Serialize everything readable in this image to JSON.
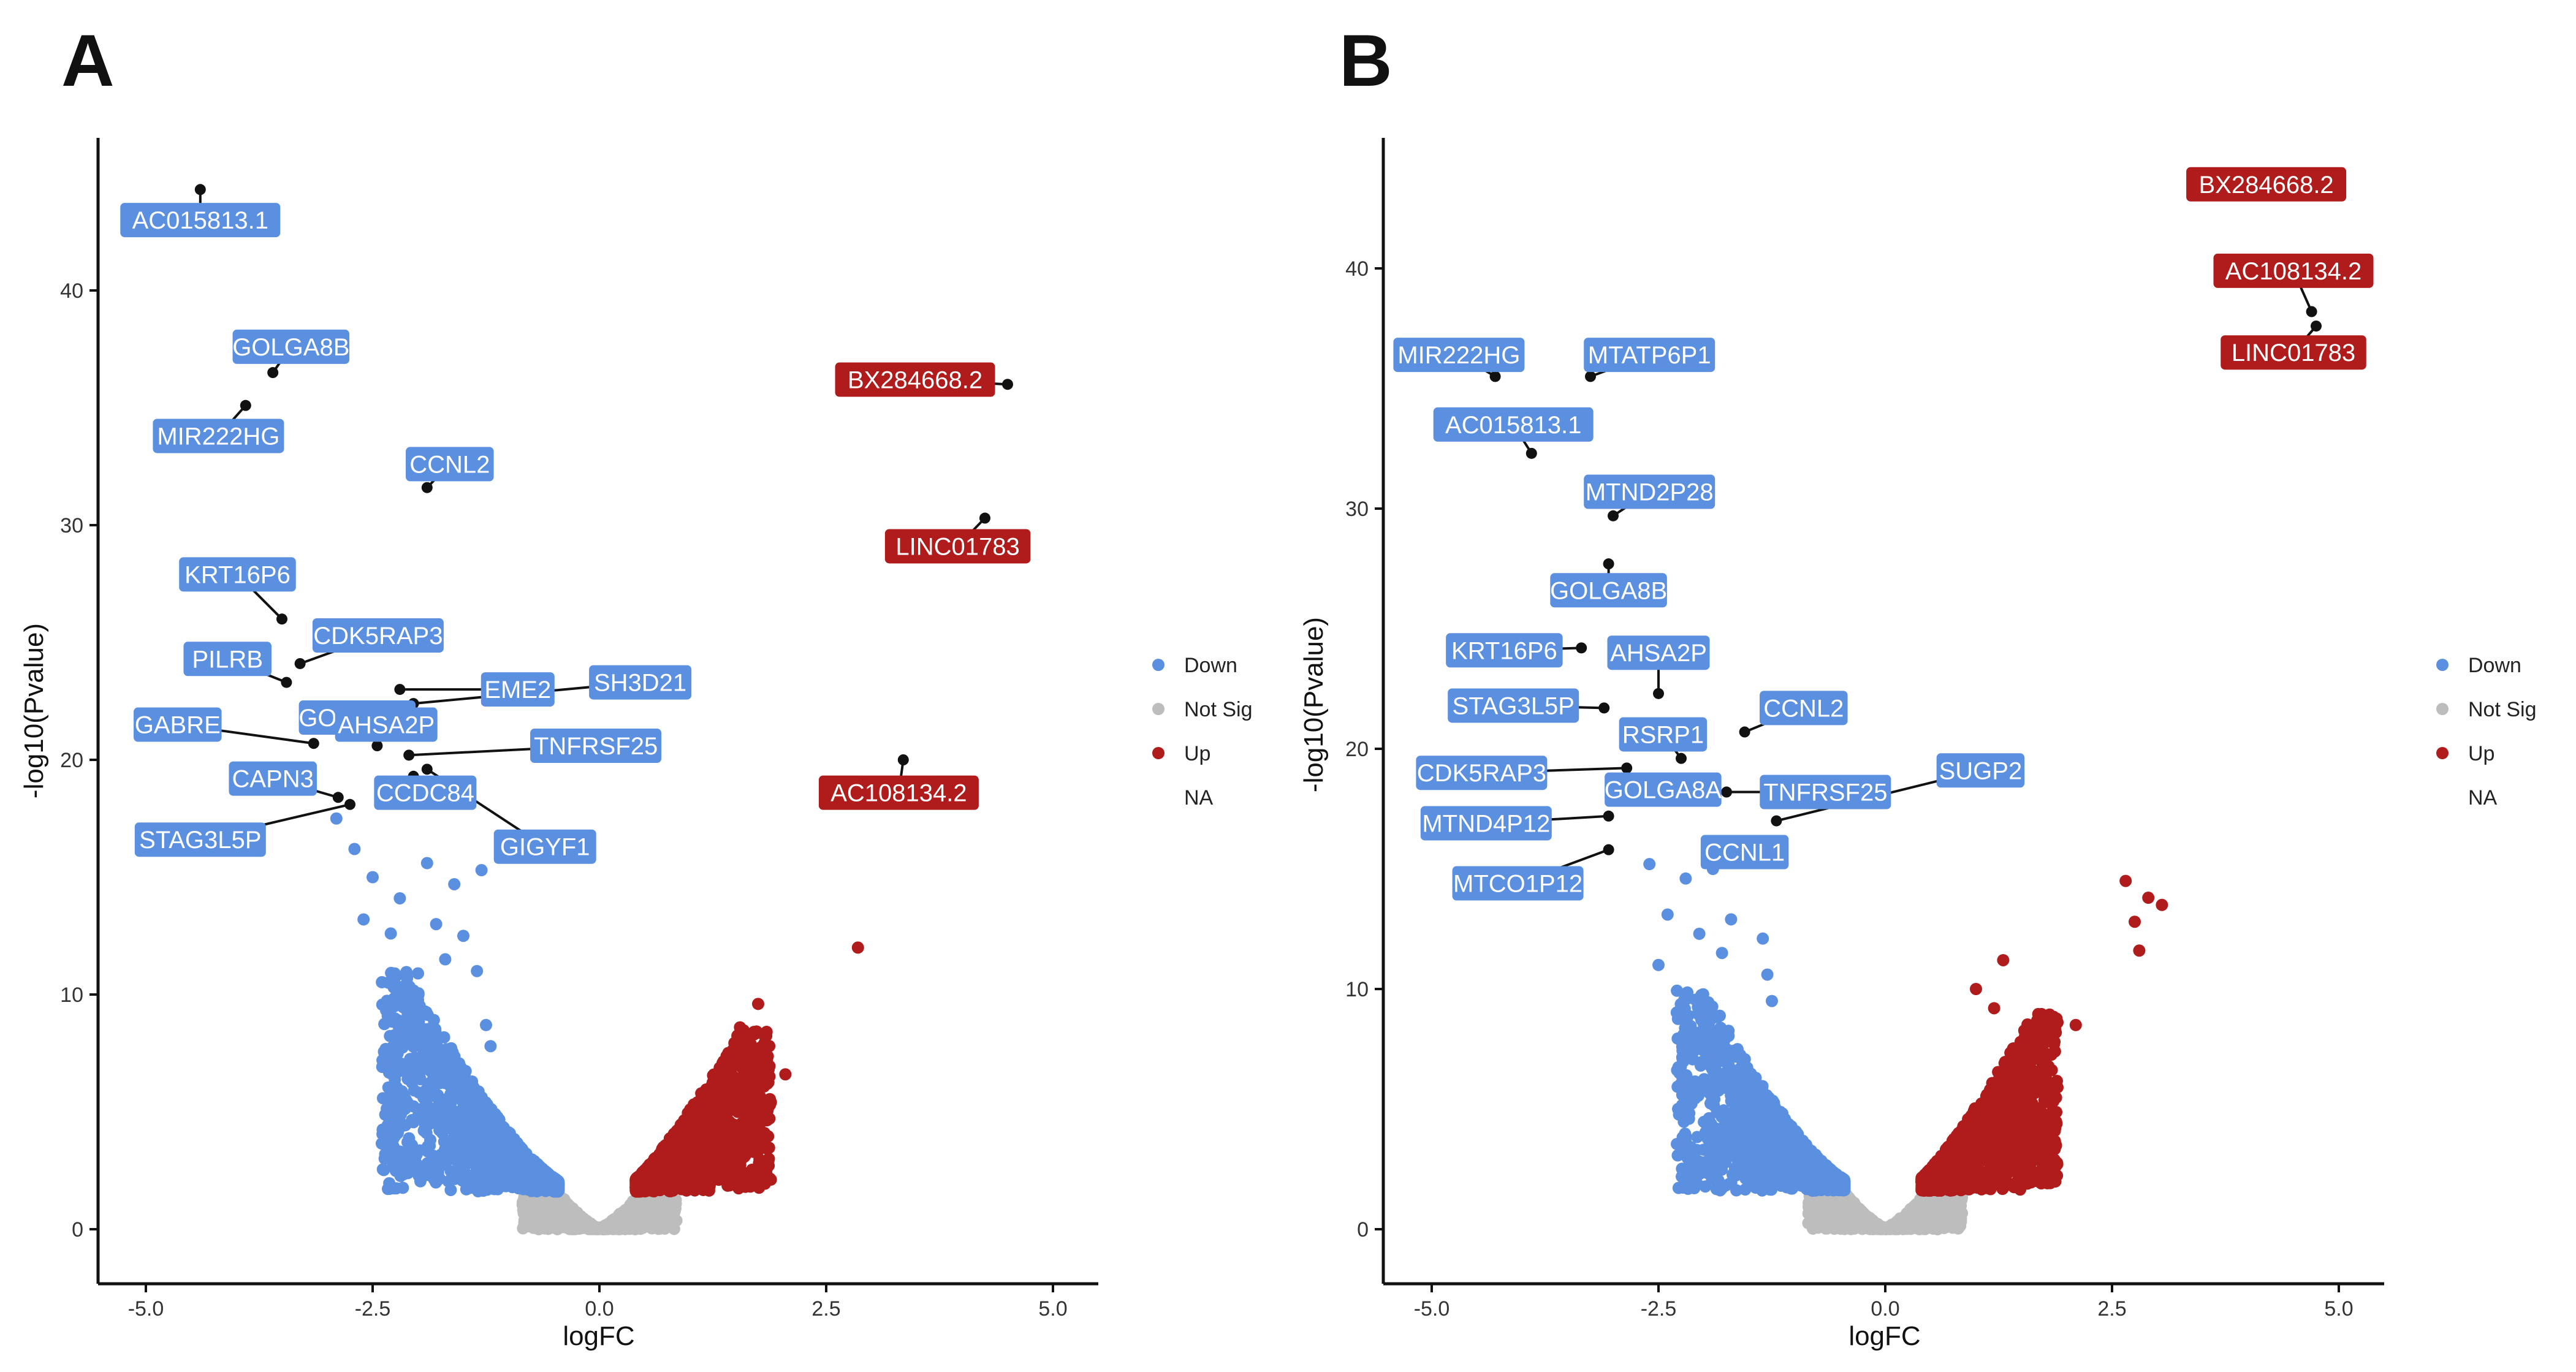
{
  "colors": {
    "down": "#5b8fe0",
    "not_sig": "#bdbdbd",
    "up": "#b01c1c",
    "axis": "#111111",
    "leader": "#111111"
  },
  "chart_data": [
    {
      "panel": "A",
      "type": "scatter",
      "xlabel": "logFC",
      "ylabel": "-log10(Pvalue)",
      "xlim": [
        -5.5,
        5.5
      ],
      "ylim": [
        -2,
        46
      ],
      "xticks": [
        -5.0,
        -2.5,
        0.0,
        2.5,
        5.0
      ],
      "xtick_labels": [
        "-5.0",
        "-2.5",
        "0.0",
        "2.5",
        "5.0"
      ],
      "yticks": [
        0,
        10,
        20,
        30,
        40
      ],
      "ytick_labels": [
        "0",
        "10",
        "20",
        "30",
        "40"
      ],
      "legend": {
        "position": "right",
        "entries": [
          {
            "label": "Down",
            "color_key": "down"
          },
          {
            "label": "Not Sig",
            "color_key": "not_sig"
          },
          {
            "label": "Up",
            "color_key": "up"
          },
          {
            "label": "NA",
            "color_key": null
          }
        ]
      },
      "bulk": {
        "down_xmin": -2.4,
        "down_ymax": 11,
        "up_xmax": 1.9,
        "up_ymax": 8.5,
        "notsig_ymax": 2.2
      },
      "extra_points": [
        {
          "x": -2.9,
          "y": 17.5,
          "group": "down"
        },
        {
          "x": -2.7,
          "y": 16.2,
          "group": "down"
        },
        {
          "x": -2.5,
          "y": 15.0,
          "group": "down"
        },
        {
          "x": -2.2,
          "y": 14.1,
          "group": "down"
        },
        {
          "x": -1.9,
          "y": 15.6,
          "group": "down"
        },
        {
          "x": -1.6,
          "y": 14.7,
          "group": "down"
        },
        {
          "x": -1.3,
          "y": 15.3,
          "group": "down"
        },
        {
          "x": -2.6,
          "y": 13.2,
          "group": "down"
        },
        {
          "x": -2.3,
          "y": 12.6,
          "group": "down"
        },
        {
          "x": -1.8,
          "y": 13.0,
          "group": "down"
        },
        {
          "x": -1.5,
          "y": 12.5,
          "group": "down"
        },
        {
          "x": -1.35,
          "y": 11.0,
          "group": "down"
        },
        {
          "x": -1.7,
          "y": 11.5,
          "group": "down"
        },
        {
          "x": -2.0,
          "y": 10.9,
          "group": "down"
        },
        {
          "x": -1.25,
          "y": 8.7,
          "group": "down"
        },
        {
          "x": -1.2,
          "y": 7.8,
          "group": "down"
        },
        {
          "x": 1.55,
          "y": 8.6,
          "group": "up"
        },
        {
          "x": 1.75,
          "y": 9.6,
          "group": "up"
        },
        {
          "x": 1.65,
          "y": 7.3,
          "group": "up"
        },
        {
          "x": 2.05,
          "y": 6.6,
          "group": "up"
        },
        {
          "x": 1.85,
          "y": 6.2,
          "group": "up"
        },
        {
          "x": 2.85,
          "y": 12.0,
          "group": "up"
        }
      ],
      "labeled_genes": [
        {
          "name": "AC015813.1",
          "group": "down",
          "x": -4.4,
          "y": 44.3,
          "lx": -4.4,
          "ly": 43.0
        },
        {
          "name": "GOLGA8B",
          "group": "down",
          "x": -3.6,
          "y": 36.5,
          "lx": -3.4,
          "ly": 37.6
        },
        {
          "name": "MIR222HG",
          "group": "down",
          "x": -3.9,
          "y": 35.1,
          "lx": -4.2,
          "ly": 33.8
        },
        {
          "name": "CCNL2",
          "group": "down",
          "x": -1.9,
          "y": 31.6,
          "lx": -1.65,
          "ly": 32.6
        },
        {
          "name": "KRT16P6",
          "group": "down",
          "x": -3.5,
          "y": 26.0,
          "lx": -3.99,
          "ly": 27.9
        },
        {
          "name": "CDK5RAP3",
          "group": "down",
          "x": -3.3,
          "y": 24.1,
          "lx": -2.44,
          "ly": 25.3
        },
        {
          "name": "PILRB",
          "group": "down",
          "x": -3.45,
          "y": 23.3,
          "lx": -4.1,
          "ly": 24.3
        },
        {
          "name": "EME2",
          "group": "down",
          "x": -2.2,
          "y": 23.0,
          "lx": -0.9,
          "ly": 23.0
        },
        {
          "name": "SH3D21",
          "group": "down",
          "x": -2.05,
          "y": 22.4,
          "lx": 0.45,
          "ly": 23.3
        },
        {
          "name": "GOLGA8A",
          "group": "down",
          "x": -2.3,
          "y": 21.5,
          "lx": -2.67,
          "ly": 21.8
        },
        {
          "name": "GABRE",
          "group": "down",
          "x": -3.15,
          "y": 20.7,
          "lx": -4.65,
          "ly": 21.5
        },
        {
          "name": "AHSA2P",
          "group": "down",
          "x": -2.45,
          "y": 20.6,
          "lx": -2.35,
          "ly": 21.5
        },
        {
          "name": "TNFRSF25",
          "group": "down",
          "x": -2.1,
          "y": 20.2,
          "lx": -0.04,
          "ly": 20.6
        },
        {
          "name": "CAPN3",
          "group": "down",
          "x": -2.88,
          "y": 18.4,
          "lx": -3.6,
          "ly": 19.2
        },
        {
          "name": "CCDC84",
          "group": "down",
          "x": -2.05,
          "y": 19.3,
          "lx": -1.92,
          "ly": 18.6
        },
        {
          "name": "STAG3L5P",
          "group": "down",
          "x": -2.75,
          "y": 18.1,
          "lx": -4.4,
          "ly": 16.6
        },
        {
          "name": "GIGYF1",
          "group": "down",
          "x": -1.9,
          "y": 19.6,
          "lx": -0.6,
          "ly": 16.3
        },
        {
          "name": "BX284668.2",
          "group": "up",
          "x": 4.5,
          "y": 36.0,
          "lx": 3.48,
          "ly": 36.2
        },
        {
          "name": "LINC01783",
          "group": "up",
          "x": 4.25,
          "y": 30.3,
          "lx": 3.95,
          "ly": 29.1
        },
        {
          "name": "AC108134.2",
          "group": "up",
          "x": 3.35,
          "y": 20.0,
          "lx": 3.3,
          "ly": 18.6
        }
      ]
    },
    {
      "panel": "B",
      "type": "scatter",
      "xlabel": "logFC",
      "ylabel": "-log10(Pvalue)",
      "xlim": [
        -5.5,
        5.5
      ],
      "ylim": [
        -2,
        46
      ],
      "xticks": [
        -5.0,
        -2.5,
        0.0,
        2.5,
        5.0
      ],
      "xtick_labels": [
        "-5.0",
        "-2.5",
        "0.0",
        "2.5",
        "5.0"
      ],
      "yticks": [
        0,
        10,
        20,
        30,
        40
      ],
      "ytick_labels": [
        "0",
        "10",
        "20",
        "30",
        "40"
      ],
      "legend": {
        "position": "right",
        "entries": [
          {
            "label": "Down",
            "color_key": "down"
          },
          {
            "label": "Not Sig",
            "color_key": "not_sig"
          },
          {
            "label": "Up",
            "color_key": "up"
          },
          {
            "label": "NA",
            "color_key": null
          }
        ]
      },
      "bulk": {
        "down_xmin": -2.3,
        "down_ymax": 10,
        "up_xmax": 1.9,
        "up_ymax": 9,
        "notsig_ymax": 2.2
      },
      "extra_points": [
        {
          "x": -2.6,
          "y": 15.2,
          "group": "down"
        },
        {
          "x": -2.2,
          "y": 14.6,
          "group": "down"
        },
        {
          "x": -1.9,
          "y": 15.0,
          "group": "down"
        },
        {
          "x": -1.5,
          "y": 15.4,
          "group": "down"
        },
        {
          "x": -2.4,
          "y": 13.1,
          "group": "down"
        },
        {
          "x": -2.05,
          "y": 12.3,
          "group": "down"
        },
        {
          "x": -1.7,
          "y": 12.9,
          "group": "down"
        },
        {
          "x": -1.35,
          "y": 12.1,
          "group": "down"
        },
        {
          "x": -2.5,
          "y": 11.0,
          "group": "down"
        },
        {
          "x": -1.8,
          "y": 11.5,
          "group": "down"
        },
        {
          "x": -1.25,
          "y": 9.5,
          "group": "down"
        },
        {
          "x": -1.3,
          "y": 10.6,
          "group": "down"
        },
        {
          "x": 2.65,
          "y": 14.5,
          "group": "up"
        },
        {
          "x": 2.9,
          "y": 13.8,
          "group": "up"
        },
        {
          "x": 3.05,
          "y": 13.5,
          "group": "up"
        },
        {
          "x": 2.75,
          "y": 12.8,
          "group": "up"
        },
        {
          "x": 2.8,
          "y": 11.6,
          "group": "up"
        },
        {
          "x": 1.3,
          "y": 11.2,
          "group": "up"
        },
        {
          "x": 1.0,
          "y": 10.0,
          "group": "up"
        },
        {
          "x": 1.2,
          "y": 9.2,
          "group": "up"
        },
        {
          "x": 2.1,
          "y": 8.5,
          "group": "up"
        },
        {
          "x": 1.85,
          "y": 8.8,
          "group": "up"
        }
      ],
      "labeled_genes": [
        {
          "name": "BX284668.2",
          "group": "up",
          "x": 4.9,
          "y": 43.4,
          "lx": 4.2,
          "ly": 43.5
        },
        {
          "name": "AC108134.2",
          "group": "up",
          "x": 4.7,
          "y": 38.2,
          "lx": 4.5,
          "ly": 39.9
        },
        {
          "name": "LINC01783",
          "group": "up",
          "x": 4.75,
          "y": 37.6,
          "lx": 4.5,
          "ly": 36.5
        },
        {
          "name": "MIR222HG",
          "group": "down",
          "x": -4.3,
          "y": 35.5,
          "lx": -4.7,
          "ly": 36.4
        },
        {
          "name": "MTATP6P1",
          "group": "down",
          "x": -3.25,
          "y": 35.5,
          "lx": -2.6,
          "ly": 36.4
        },
        {
          "name": "AC015813.1",
          "group": "down",
          "x": -3.9,
          "y": 32.3,
          "lx": -4.1,
          "ly": 33.5
        },
        {
          "name": "MTND2P28",
          "group": "down",
          "x": -3.0,
          "y": 29.7,
          "lx": -2.6,
          "ly": 30.7
        },
        {
          "name": "GOLGA8B",
          "group": "down",
          "x": -3.05,
          "y": 27.7,
          "lx": -3.05,
          "ly": 26.6
        },
        {
          "name": "KRT16P6",
          "group": "down",
          "x": -3.35,
          "y": 24.2,
          "lx": -4.2,
          "ly": 24.1
        },
        {
          "name": "AHSA2P",
          "group": "down",
          "x": -2.5,
          "y": 22.3,
          "lx": -2.5,
          "ly": 24.0
        },
        {
          "name": "STAG3L5P",
          "group": "down",
          "x": -3.1,
          "y": 21.7,
          "lx": -4.1,
          "ly": 21.8
        },
        {
          "name": "CCNL2",
          "group": "down",
          "x": -1.55,
          "y": 20.7,
          "lx": -0.9,
          "ly": 21.7
        },
        {
          "name": "RSRP1",
          "group": "down",
          "x": -2.25,
          "y": 19.6,
          "lx": -2.45,
          "ly": 20.6
        },
        {
          "name": "CDK5RAP3",
          "group": "down",
          "x": -2.85,
          "y": 19.2,
          "lx": -4.45,
          "ly": 19.0
        },
        {
          "name": "SUGP2",
          "group": "down",
          "x": -1.2,
          "y": 17.0,
          "lx": 1.05,
          "ly": 19.1
        },
        {
          "name": "GOLGA8A",
          "group": "down",
          "x": -2.5,
          "y": 18.5,
          "lx": -2.45,
          "ly": 18.3
        },
        {
          "name": "TNFRSF25",
          "group": "down",
          "x": -1.75,
          "y": 18.2,
          "lx": -0.66,
          "ly": 18.2
        },
        {
          "name": "MTND4P12",
          "group": "down",
          "x": -3.05,
          "y": 17.2,
          "lx": -4.4,
          "ly": 16.9
        },
        {
          "name": "CCNL1",
          "group": "down",
          "x": -1.65,
          "y": 16.0,
          "lx": -1.55,
          "ly": 15.7
        },
        {
          "name": "MTCO1P12",
          "group": "down",
          "x": -3.05,
          "y": 15.8,
          "lx": -4.05,
          "ly": 14.4
        }
      ]
    }
  ]
}
